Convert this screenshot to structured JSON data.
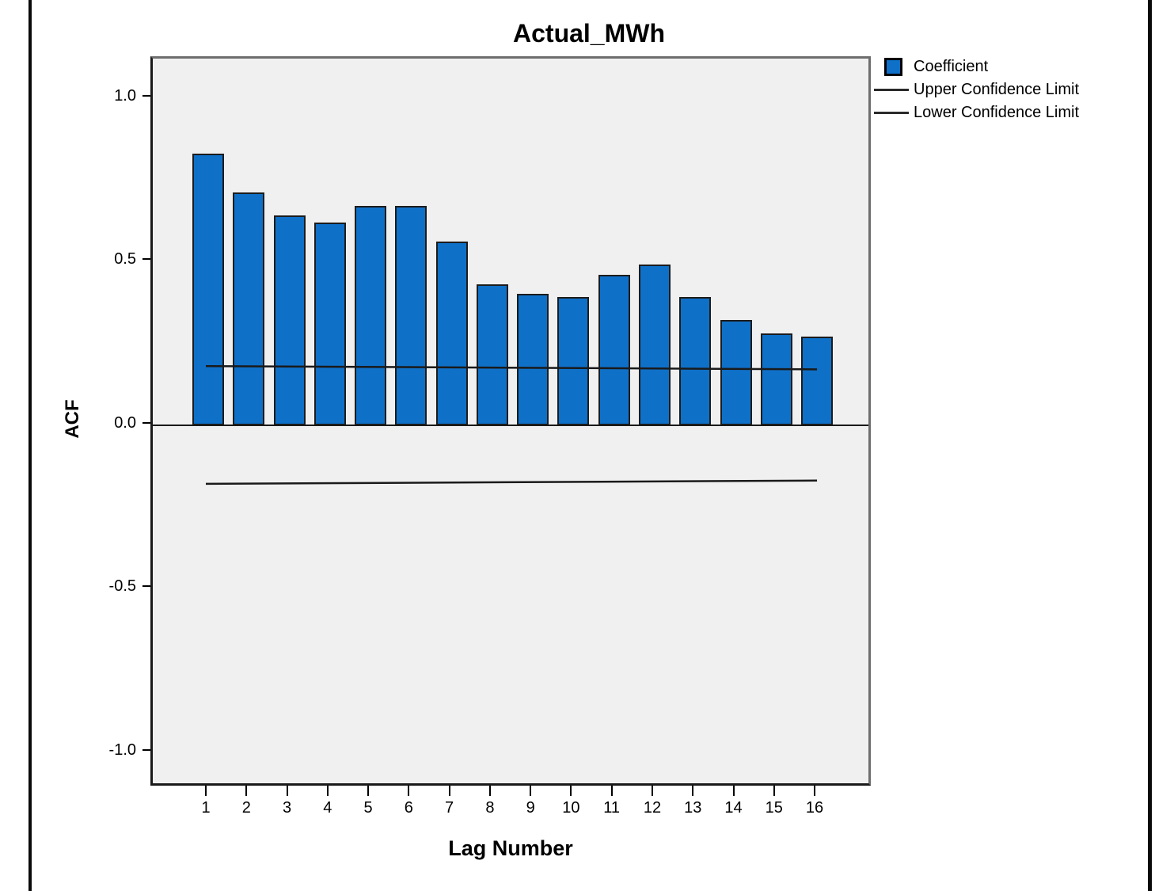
{
  "title": "Actual_MWh",
  "axes": {
    "y_label": "ACF",
    "x_label": "Lag Number",
    "y_tick_labels": [
      "1.0",
      "0.5",
      "0.0",
      "-0.5",
      "-1.0"
    ],
    "y_tick_values": [
      1.0,
      0.5,
      0.0,
      -0.5,
      -1.0
    ]
  },
  "legend": {
    "items": [
      {
        "label": "Coefficient",
        "swatch": "square"
      },
      {
        "label": "Upper Confidence Limit",
        "swatch": "line"
      },
      {
        "label": "Lower Confidence Limit",
        "swatch": "line"
      }
    ]
  },
  "colors": {
    "bar_fill": "#0f70c8",
    "plot_background": "#f0f0f0",
    "confidence_line": "#1a1a1a"
  },
  "chart_data": {
    "type": "bar",
    "title": "Actual_MWh",
    "xlabel": "Lag Number",
    "ylabel": "ACF",
    "categories": [
      "1",
      "2",
      "3",
      "4",
      "5",
      "6",
      "7",
      "8",
      "9",
      "10",
      "11",
      "12",
      "13",
      "14",
      "15",
      "16"
    ],
    "values": [
      0.83,
      0.71,
      0.64,
      0.62,
      0.67,
      0.67,
      0.56,
      0.43,
      0.4,
      0.39,
      0.46,
      0.49,
      0.39,
      0.32,
      0.28,
      0.27
    ],
    "series": [
      {
        "name": "Coefficient",
        "values": [
          0.83,
          0.71,
          0.64,
          0.62,
          0.67,
          0.67,
          0.56,
          0.43,
          0.4,
          0.39,
          0.46,
          0.49,
          0.39,
          0.32,
          0.28,
          0.27
        ]
      },
      {
        "name": "Upper Confidence Limit",
        "values_endpoints": [
          0.18,
          0.17
        ]
      },
      {
        "name": "Lower Confidence Limit",
        "values_endpoints": [
          -0.18,
          -0.17
        ]
      }
    ],
    "ylim": [
      -1.11,
      1.12
    ],
    "y_ticks": [
      1.0,
      0.5,
      0.0,
      -0.5,
      -1.0
    ],
    "grid": false,
    "legend_position": "outside-top-right"
  }
}
